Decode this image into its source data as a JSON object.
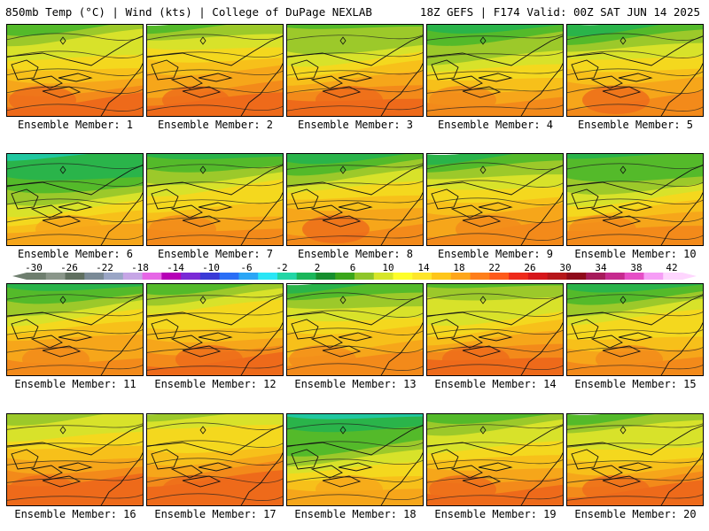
{
  "header": {
    "left": "850mb Temp (°C) | Wind (kts) | College of DuPage NEXLAB",
    "right": "18Z GEFS | F174 Valid: 00Z SAT JUN 14 2025"
  },
  "panels": [
    {
      "label": "Ensemble Member: 1",
      "warmth": 0.62
    },
    {
      "label": "Ensemble Member: 2",
      "warmth": 0.66
    },
    {
      "label": "Ensemble Member: 3",
      "warmth": 0.6
    },
    {
      "label": "Ensemble Member: 4",
      "warmth": 0.52
    },
    {
      "label": "Ensemble Member: 5",
      "warmth": 0.58
    },
    {
      "label": "Ensemble Member: 6",
      "warmth": 0.4
    },
    {
      "label": "Ensemble Member: 7",
      "warmth": 0.55
    },
    {
      "label": "Ensemble Member: 8",
      "warmth": 0.58
    },
    {
      "label": "Ensemble Member: 9",
      "warmth": 0.57
    },
    {
      "label": "Ensemble Member: 10",
      "warmth": 0.5
    },
    {
      "label": "Ensemble Member: 11",
      "warmth": 0.57
    },
    {
      "label": "Ensemble Member: 12",
      "warmth": 0.63
    },
    {
      "label": "Ensemble Member: 13",
      "warmth": 0.56
    },
    {
      "label": "Ensemble Member: 14",
      "warmth": 0.62
    },
    {
      "label": "Ensemble Member: 15",
      "warmth": 0.55
    },
    {
      "label": "Ensemble Member: 16",
      "warmth": 0.7
    },
    {
      "label": "Ensemble Member: 17",
      "warmth": 0.72
    },
    {
      "label": "Ensemble Member: 18",
      "warmth": 0.42
    },
    {
      "label": "Ensemble Member: 19",
      "warmth": 0.62
    },
    {
      "label": "Ensemble Member: 20",
      "warmth": 0.62
    }
  ],
  "colorbar": {
    "labels": [
      "-30",
      "-26",
      "-22",
      "-18",
      "-14",
      "-10",
      "-6",
      "-2",
      "2",
      "6",
      "10",
      "14",
      "18",
      "22",
      "26",
      "30",
      "34",
      "38",
      "42"
    ],
    "colors": [
      "#6e7e6e",
      "#8a968a",
      "#5f6f5f",
      "#7a8a96",
      "#9aa6c6",
      "#c6a6e6",
      "#e666e6",
      "#b600b6",
      "#7a2ad6",
      "#3a3ad6",
      "#2a6ef6",
      "#2aa6f6",
      "#2ae6f6",
      "#22d6a6",
      "#1ab65a",
      "#168e2e",
      "#3aa61a",
      "#8ec62a",
      "#d6e62a",
      "#fefe2a",
      "#fee62a",
      "#fec61a",
      "#fea61a",
      "#fe7e1a",
      "#fe5a1a",
      "#ee2a1a",
      "#d6161a",
      "#b6161a",
      "#8e0a1a",
      "#a61a5a",
      "#c62a8e",
      "#e64ec6",
      "#f69ef6",
      "#fed6fe"
    ]
  }
}
